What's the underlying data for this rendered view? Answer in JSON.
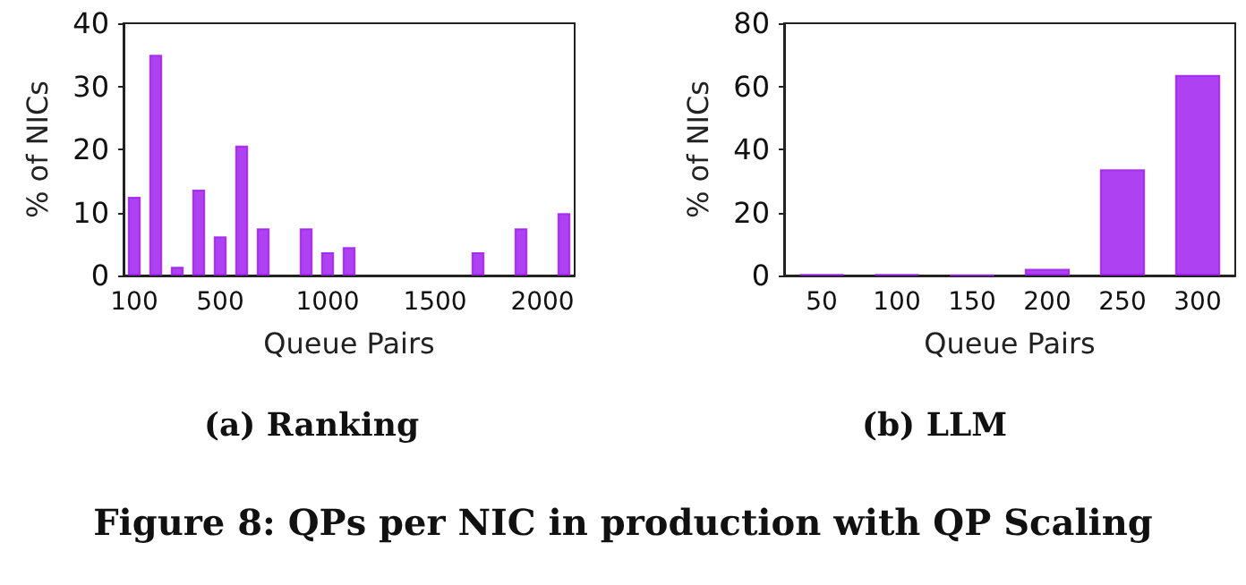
{
  "chart_data": [
    {
      "type": "bar",
      "title": "(a) Ranking",
      "xlabel": "Queue Pairs",
      "ylabel": "% of NICs",
      "categories": [
        "100",
        null,
        null,
        null,
        "500",
        null,
        null,
        null,
        null,
        "1000",
        null,
        null,
        null,
        null,
        "1500",
        null,
        null,
        null,
        null,
        "2000",
        null
      ],
      "values": [
        12.5,
        35,
        1.4,
        13.6,
        6.2,
        20.6,
        7.5,
        null,
        7.5,
        3.7,
        4.5,
        null,
        null,
        null,
        null,
        null,
        3.7,
        null,
        7.5,
        null,
        9.9
      ],
      "color": "#a020f0",
      "ylim": [
        0,
        40
      ],
      "yticks": [
        0,
        10,
        20,
        30,
        40
      ],
      "grid": false,
      "annotations": [
        "Figure 8: QPs per NIC in production with QP Scaling"
      ]
    },
    {
      "type": "bar",
      "title": "(b) LLM",
      "xlabel": "Queue Pairs",
      "ylabel": "% of NICs",
      "categories": [
        "50",
        "100",
        "150",
        "200",
        "250",
        "300"
      ],
      "values": [
        0.4,
        0.4,
        0.2,
        2.1,
        33.7,
        63.6
      ],
      "color": "#a020f0",
      "ylim": [
        0,
        80
      ],
      "yticks": [
        0,
        20,
        40,
        60,
        80
      ],
      "grid": false
    }
  ]
}
